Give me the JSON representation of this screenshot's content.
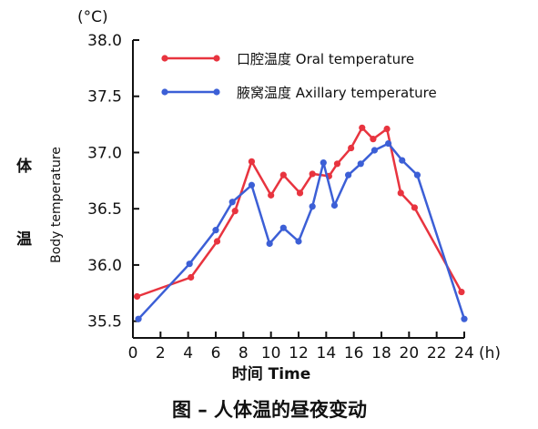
{
  "chart_data": {
    "type": "line",
    "title": "",
    "caption": "图 – 人体温的昼夜变动",
    "xlabel": "时间 Time",
    "xunit": "(h)",
    "ylabel_cjk_1": "体",
    "ylabel_cjk_2": "温",
    "ylabel": "Body temperature",
    "yunit": "(°C)",
    "xlim": [
      0,
      24
    ],
    "ylim": [
      35.4,
      38.0
    ],
    "xticks": [
      0,
      2,
      4,
      6,
      8,
      10,
      12,
      14,
      16,
      18,
      20,
      22,
      24
    ],
    "yticks": [
      35.5,
      36.0,
      36.5,
      37.0,
      37.5,
      38.0
    ],
    "yticklabels": [
      "35.5",
      "36.0",
      "36.5",
      "37.0",
      "37.5",
      "38.0"
    ],
    "grid": false,
    "legend_position": "top-right",
    "series": [
      {
        "name": "口腔温度 Oral temperature",
        "color": "#e8343f",
        "x": [
          0.3,
          4.2,
          6.1,
          7.4,
          8.6,
          10.0,
          10.9,
          12.1,
          13.0,
          14.2,
          14.8,
          15.8,
          16.6,
          17.4,
          18.4,
          19.4,
          20.4,
          23.8
        ],
        "y": [
          35.72,
          35.89,
          36.21,
          36.48,
          36.92,
          36.62,
          36.8,
          36.64,
          36.81,
          36.79,
          36.9,
          37.04,
          37.22,
          37.12,
          37.21,
          36.64,
          36.51,
          35.76
        ]
      },
      {
        "name": "腋窝温度 Axillary temperature",
        "color": "#3c5fd6",
        "x": [
          0.4,
          4.1,
          6.0,
          7.2,
          8.6,
          9.9,
          10.9,
          12.0,
          13.0,
          13.8,
          14.6,
          15.6,
          16.5,
          17.5,
          18.5,
          19.5,
          20.6,
          24.0
        ],
        "y": [
          35.52,
          36.01,
          36.31,
          36.56,
          36.71,
          36.19,
          36.33,
          36.21,
          36.52,
          36.91,
          36.53,
          36.8,
          36.9,
          37.02,
          37.08,
          36.93,
          36.8,
          35.52
        ]
      }
    ]
  }
}
